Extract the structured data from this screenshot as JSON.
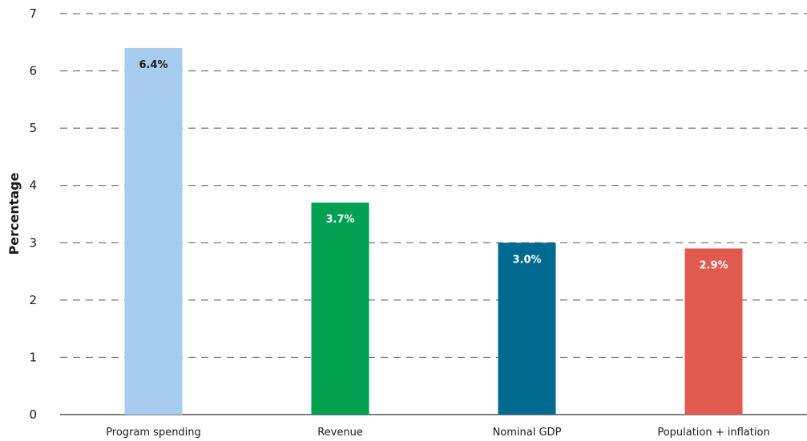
{
  "chart_data": {
    "type": "bar",
    "title": "",
    "xlabel": "",
    "ylabel": "Percentage",
    "ylim": [
      0,
      7
    ],
    "yticks": [
      "0",
      "1",
      "2",
      "3",
      "4",
      "5",
      "6",
      "7"
    ],
    "grid": true,
    "categories": [
      "Program spending",
      "Revenue",
      "Nominal GDP",
      "Population + inflation"
    ],
    "values": [
      6.4,
      3.7,
      3.0,
      2.9
    ],
    "data_labels": [
      "6.4%",
      "3.7%",
      "3.0%",
      "2.9%"
    ],
    "colors": [
      "#a7cced",
      "#00a050",
      "#006990",
      "#e05a4f"
    ],
    "label_colors": [
      "#1a1a1a",
      "#ffffff",
      "#ffffff",
      "#ffffff"
    ]
  }
}
